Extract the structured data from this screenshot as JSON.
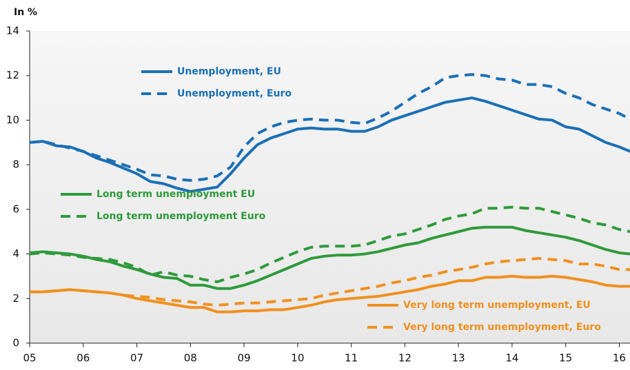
{
  "chart_data": {
    "type": "line",
    "y_label": "In %",
    "x": [
      2005,
      2005.25,
      2005.5,
      2005.75,
      2006,
      2006.25,
      2006.5,
      2006.75,
      2007,
      2007.25,
      2007.5,
      2007.75,
      2008,
      2008.25,
      2008.5,
      2008.75,
      2009,
      2009.25,
      2009.5,
      2009.75,
      2010,
      2010.25,
      2010.5,
      2010.75,
      2011,
      2011.25,
      2011.5,
      2011.75,
      2012,
      2012.25,
      2012.5,
      2012.75,
      2013,
      2013.25,
      2013.5,
      2013.75,
      2014,
      2014.25,
      2014.5,
      2014.75,
      2015,
      2015.25,
      2015.5,
      2015.75,
      2016,
      2016.2
    ],
    "series": [
      {
        "name": "Unemployment, EU",
        "color": "#1a6fb5",
        "dashed": false,
        "values": [
          9.0,
          9.05,
          8.85,
          8.8,
          8.6,
          8.3,
          8.1,
          7.85,
          7.6,
          7.25,
          7.15,
          6.95,
          6.8,
          6.9,
          7.0,
          7.6,
          8.3,
          8.9,
          9.2,
          9.4,
          9.6,
          9.65,
          9.6,
          9.6,
          9.5,
          9.5,
          9.7,
          10.0,
          10.2,
          10.4,
          10.6,
          10.8,
          10.9,
          11.0,
          10.85,
          10.65,
          10.45,
          10.25,
          10.05,
          10.0,
          9.7,
          9.6,
          9.3,
          9.0,
          8.8,
          8.6
        ]
      },
      {
        "name": "Unemployment, Euro",
        "color": "#1a6fb5",
        "dashed": true,
        "values": [
          9.0,
          9.05,
          8.9,
          8.75,
          8.6,
          8.4,
          8.2,
          8.0,
          7.8,
          7.55,
          7.5,
          7.35,
          7.3,
          7.35,
          7.5,
          7.9,
          8.8,
          9.4,
          9.7,
          9.9,
          10.0,
          10.05,
          10.0,
          10.0,
          9.9,
          9.85,
          10.1,
          10.4,
          10.8,
          11.2,
          11.5,
          11.9,
          12.0,
          12.05,
          12.0,
          11.85,
          11.8,
          11.6,
          11.6,
          11.5,
          11.2,
          11.0,
          10.7,
          10.5,
          10.3,
          10.05
        ]
      },
      {
        "name": "Long term unemployment EU",
        "color": "#2e9a3a",
        "dashed": false,
        "values": [
          4.05,
          4.1,
          4.05,
          4.0,
          3.9,
          3.75,
          3.65,
          3.45,
          3.3,
          3.1,
          2.95,
          2.9,
          2.6,
          2.6,
          2.45,
          2.45,
          2.6,
          2.8,
          3.05,
          3.3,
          3.55,
          3.8,
          3.9,
          3.95,
          3.95,
          4.0,
          4.1,
          4.25,
          4.4,
          4.5,
          4.7,
          4.85,
          5.0,
          5.15,
          5.2,
          5.2,
          5.2,
          5.05,
          4.95,
          4.85,
          4.75,
          4.6,
          4.4,
          4.2,
          4.05,
          4.0
        ]
      },
      {
        "name": "Long term unemployment Euro",
        "color": "#2e9a3a",
        "dashed": true,
        "values": [
          4.0,
          4.05,
          4.0,
          3.95,
          3.85,
          3.8,
          3.75,
          3.6,
          3.4,
          3.05,
          3.2,
          3.05,
          3.0,
          2.85,
          2.75,
          2.95,
          3.1,
          3.3,
          3.6,
          3.85,
          4.1,
          4.3,
          4.35,
          4.35,
          4.35,
          4.4,
          4.6,
          4.8,
          4.9,
          5.1,
          5.3,
          5.55,
          5.7,
          5.8,
          6.05,
          6.05,
          6.1,
          6.05,
          6.05,
          5.9,
          5.75,
          5.6,
          5.4,
          5.3,
          5.1,
          5.0
        ]
      },
      {
        "name": "Very long term unemployment, EU",
        "color": "#f0901e",
        "dashed": false,
        "values": [
          2.3,
          2.3,
          2.35,
          2.4,
          2.35,
          2.3,
          2.25,
          2.15,
          2.0,
          1.9,
          1.8,
          1.7,
          1.6,
          1.6,
          1.4,
          1.4,
          1.45,
          1.45,
          1.5,
          1.5,
          1.6,
          1.7,
          1.85,
          1.95,
          2.0,
          2.05,
          2.1,
          2.2,
          2.3,
          2.4,
          2.55,
          2.65,
          2.8,
          2.8,
          2.95,
          2.95,
          3.0,
          2.95,
          2.95,
          3.0,
          2.95,
          2.85,
          2.75,
          2.6,
          2.55,
          2.55
        ]
      },
      {
        "name": "Very long term unemployment, Euro",
        "color": "#f0901e",
        "dashed": true,
        "values": [
          2.3,
          2.3,
          2.35,
          2.4,
          2.35,
          2.3,
          2.25,
          2.15,
          2.1,
          2.05,
          1.95,
          1.9,
          1.85,
          1.75,
          1.7,
          1.75,
          1.8,
          1.8,
          1.85,
          1.9,
          1.95,
          2.0,
          2.15,
          2.25,
          2.35,
          2.45,
          2.55,
          2.7,
          2.8,
          2.95,
          3.05,
          3.2,
          3.3,
          3.4,
          3.55,
          3.65,
          3.7,
          3.75,
          3.8,
          3.75,
          3.7,
          3.55,
          3.55,
          3.45,
          3.3,
          3.3
        ]
      }
    ],
    "xlim": [
      2005,
      2016.2
    ],
    "xticks": [
      {
        "value": 2005,
        "label": "05"
      },
      {
        "value": 2006,
        "label": "06"
      },
      {
        "value": 2007,
        "label": "07"
      },
      {
        "value": 2008,
        "label": "08"
      },
      {
        "value": 2009,
        "label": "09"
      },
      {
        "value": 2010,
        "label": "10"
      },
      {
        "value": 2011,
        "label": "11"
      },
      {
        "value": 2012,
        "label": "12"
      },
      {
        "value": 2013,
        "label": "13"
      },
      {
        "value": 2014,
        "label": "14"
      },
      {
        "value": 2015,
        "label": "15"
      },
      {
        "value": 2016,
        "label": "16"
      }
    ],
    "ylim": [
      0,
      14
    ],
    "yticks": [
      0,
      2,
      4,
      6,
      8,
      10,
      12,
      14
    ],
    "grid": false
  }
}
